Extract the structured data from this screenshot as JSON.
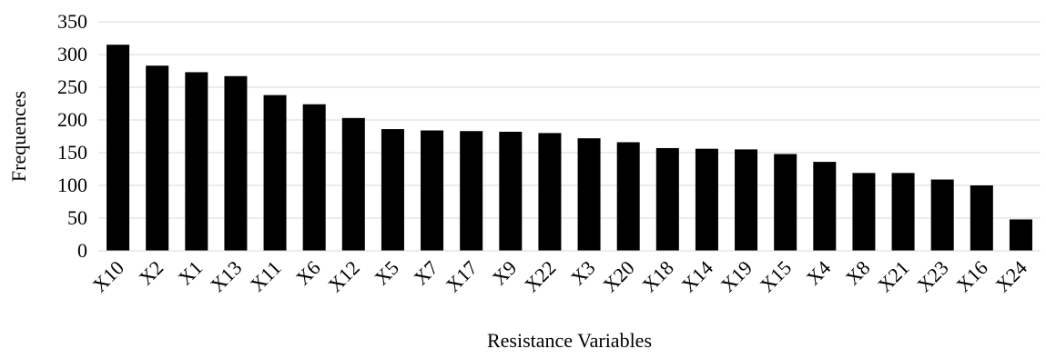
{
  "chart_data": {
    "type": "bar",
    "title": "",
    "xlabel": "Resistance Variables",
    "ylabel": "Frequences",
    "categories": [
      "X10",
      "X2",
      "X1",
      "X13",
      "X11",
      "X6",
      "X12",
      "X5",
      "X7",
      "X17",
      "X9",
      "X22",
      "X3",
      "X20",
      "X18",
      "X14",
      "X19",
      "X15",
      "X4",
      "X8",
      "X21",
      "X23",
      "X16",
      "X24"
    ],
    "values": [
      315,
      283,
      273,
      267,
      238,
      224,
      203,
      186,
      184,
      183,
      182,
      180,
      172,
      166,
      157,
      156,
      155,
      148,
      136,
      119,
      119,
      109,
      100,
      48
    ],
    "ylim": [
      0,
      350
    ],
    "yticks": [
      0,
      50,
      100,
      150,
      200,
      250,
      300,
      350
    ],
    "grid": true,
    "legend": "none",
    "bar_color": "#000000",
    "grid_color": "#d9d9d9"
  }
}
